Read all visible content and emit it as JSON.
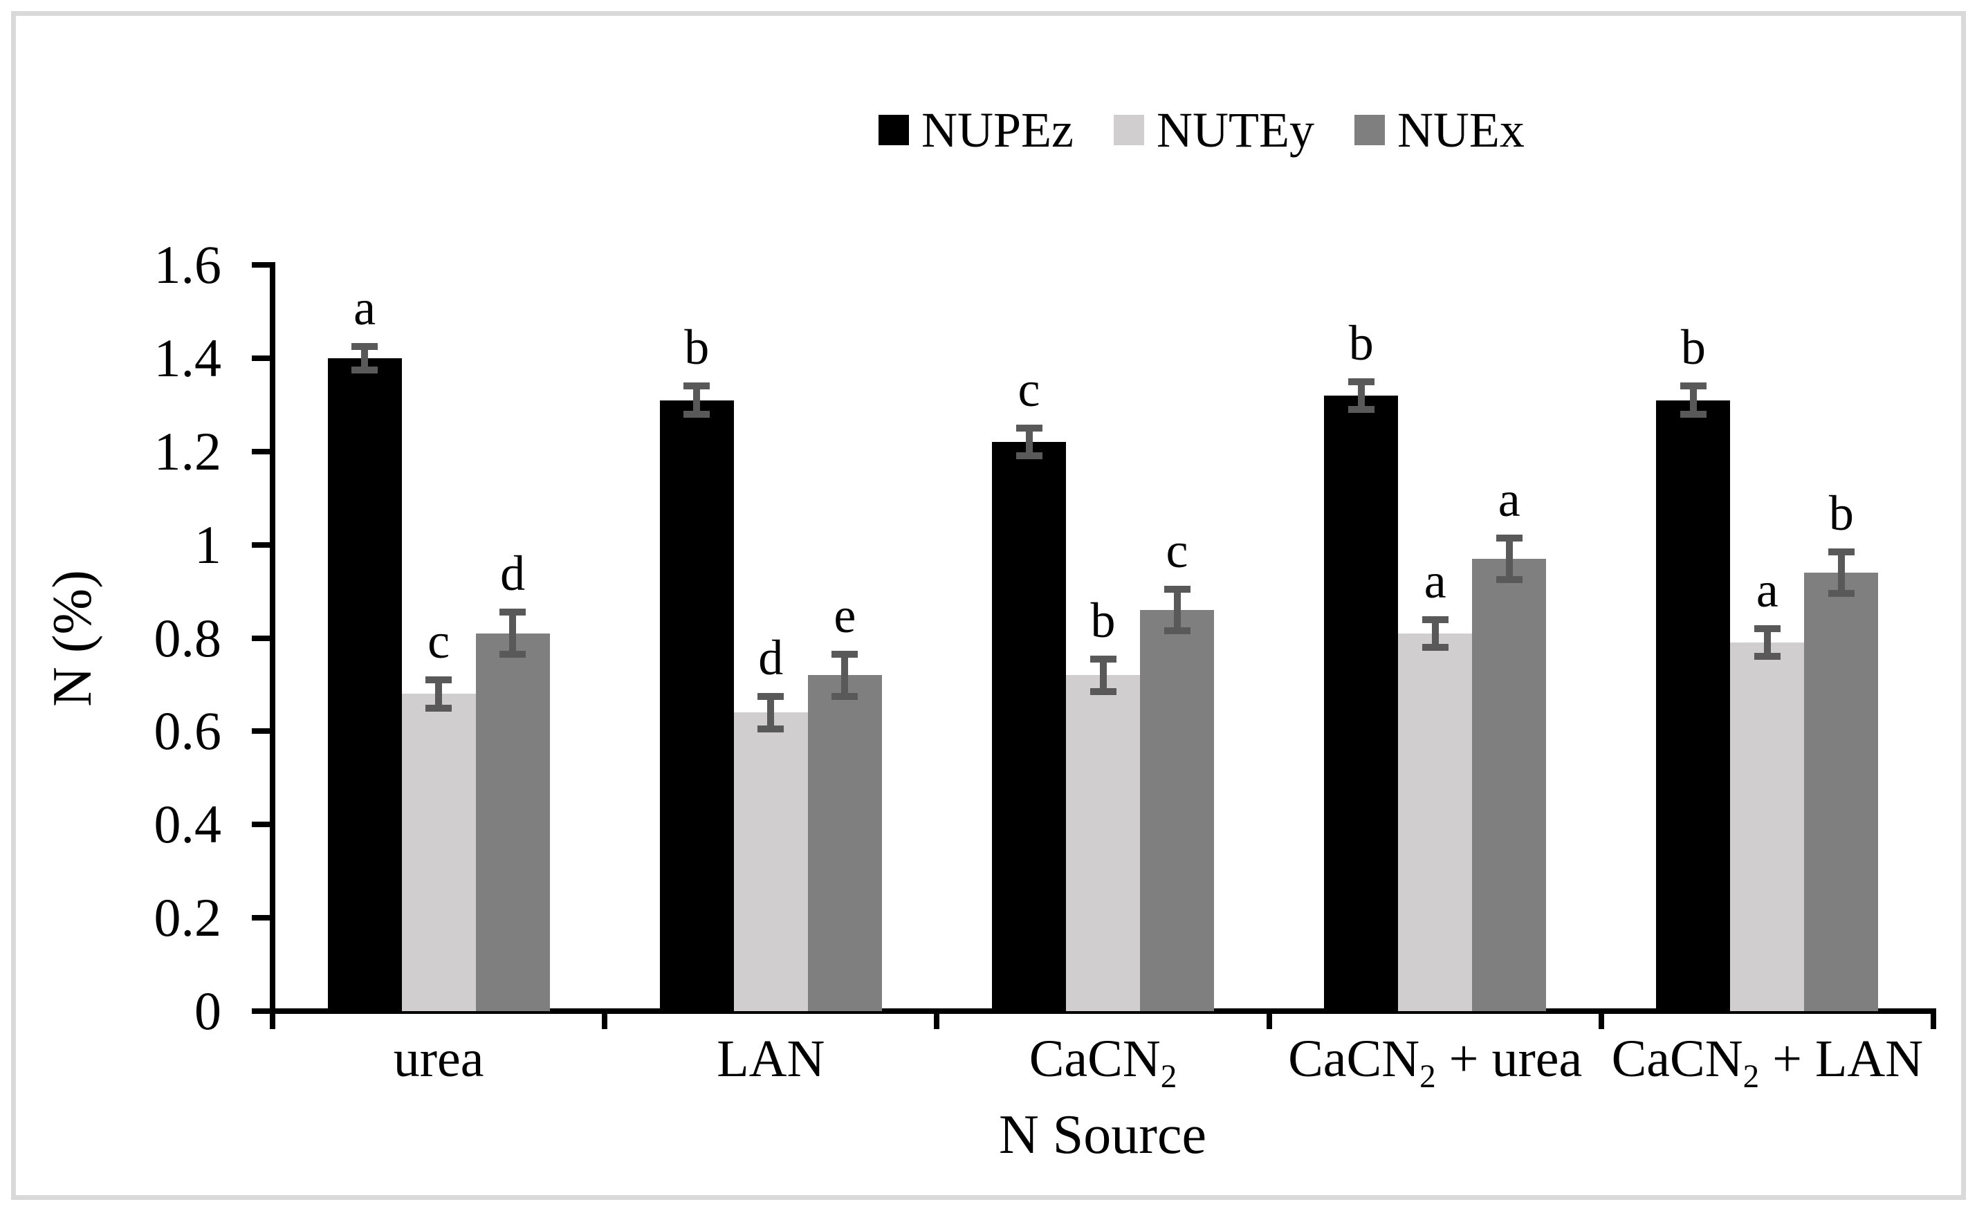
{
  "figure": {
    "y_axis_title": "N (%)",
    "x_axis_title": "N Source"
  },
  "chart_data": {
    "type": "bar",
    "title": "",
    "xlabel": "N Source",
    "ylabel": "N (%)",
    "ylim": [
      0,
      1.6
    ],
    "y_tick_step": 0.2,
    "y_tick_labels": [
      "0",
      "0.2",
      "0.4",
      "0.6",
      "0.8",
      "1",
      "1.2",
      "1.4",
      "1.6"
    ],
    "grid": false,
    "legend_position": "top",
    "categories": [
      {
        "pre": "urea",
        "sub": "",
        "post": ""
      },
      {
        "pre": "LAN",
        "sub": "",
        "post": ""
      },
      {
        "pre": "CaCN",
        "sub": "2",
        "post": ""
      },
      {
        "pre": "CaCN",
        "sub": "2",
        "post": " + urea"
      },
      {
        "pre": "CaCN",
        "sub": "2",
        "post": " + LAN"
      }
    ],
    "series": [
      {
        "name": "NUPEz",
        "color": "#000000",
        "values": [
          1.4,
          1.31,
          1.22,
          1.32,
          1.31
        ],
        "errors": [
          0.025,
          0.03,
          0.03,
          0.03,
          0.03
        ],
        "letters": [
          "a",
          "b",
          "c",
          "b",
          "b"
        ]
      },
      {
        "name": "NUTEy",
        "color": "#d0cece",
        "values": [
          0.68,
          0.64,
          0.72,
          0.81,
          0.79
        ],
        "errors": [
          0.03,
          0.035,
          0.035,
          0.03,
          0.03
        ],
        "letters": [
          "c",
          "d",
          "b",
          "a",
          "a"
        ]
      },
      {
        "name": "NUEx",
        "color": "#7f7f7f",
        "values": [
          0.81,
          0.72,
          0.86,
          0.97,
          0.94
        ],
        "errors": [
          0.045,
          0.045,
          0.045,
          0.045,
          0.045
        ],
        "letters": [
          "d",
          "e",
          "c",
          "a",
          "b"
        ]
      }
    ],
    "error_bar_color": "#595959",
    "axis_color": "#000000",
    "frame_color": "#d9d9d9"
  }
}
